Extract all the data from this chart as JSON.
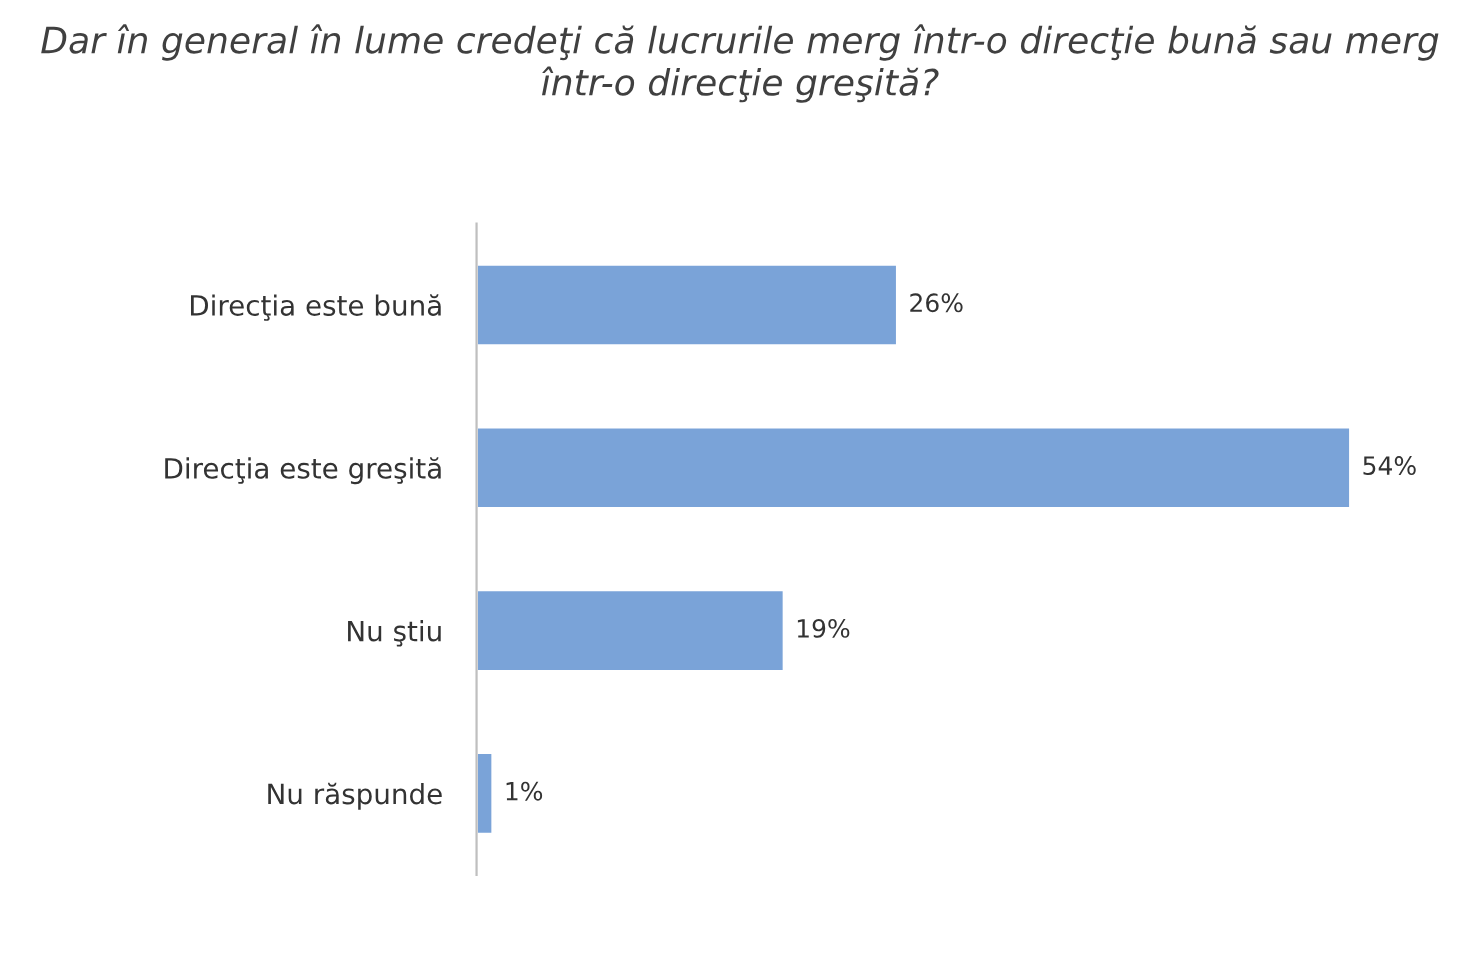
{
  "chart_data": {
    "type": "bar",
    "orientation": "horizontal",
    "title": "Dar în general în lume credeţi că lucrurile merg într-o direcţie bună sau merg într-o direcţie greşită?",
    "categories": [
      "Direcţia este bună",
      "Direcţia este greşită",
      "Nu ştiu",
      "Nu răspunde"
    ],
    "values": [
      26,
      54,
      19,
      1
    ],
    "value_labels": [
      "26%",
      "54%",
      "19%",
      "1%"
    ],
    "color": "#7aa3d8",
    "tick_labels": "y",
    "grid": false,
    "legend": false
  }
}
